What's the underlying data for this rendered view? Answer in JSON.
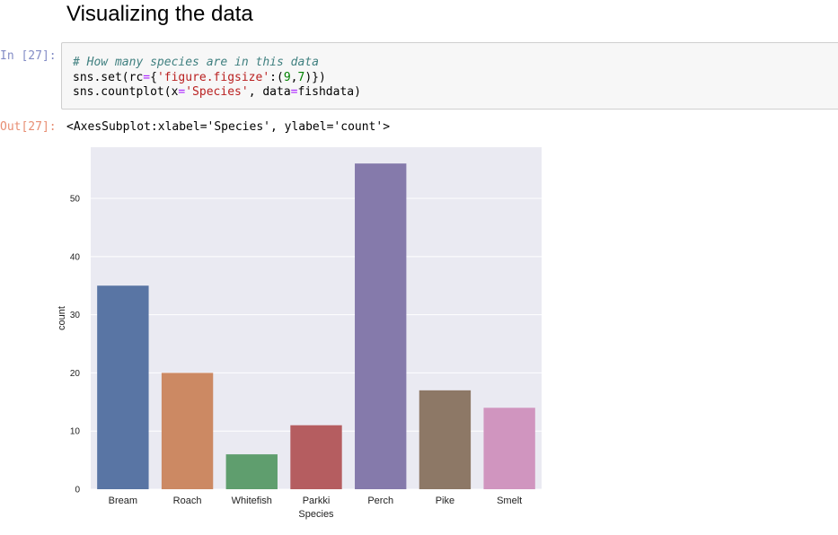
{
  "section": {
    "title": "Visualizing the data"
  },
  "cell": {
    "in_prompt": "In [27]:",
    "code_comment": "# How many species are in this data",
    "code_line2": {
      "a": "sns.set(rc",
      "eq": "=",
      "b": "{",
      "str": "'figure.figsize'",
      "c": ":(",
      "n1": "9",
      "comma": ",",
      "n2": "7",
      "d": ")})"
    },
    "code_line3": {
      "a": "sns.countplot(x",
      "eq1": "=",
      "str": "'Species'",
      "b": ", data",
      "eq2": "=",
      "c": "fishdata)"
    },
    "out_prompt": "Out[27]:",
    "out_text": "<AxesSubplot:xlabel='Species', ylabel='count'>"
  },
  "chart_data": {
    "type": "bar",
    "categories": [
      "Bream",
      "Roach",
      "Whitefish",
      "Parkki",
      "Perch",
      "Pike",
      "Smelt"
    ],
    "values": [
      35,
      20,
      6,
      11,
      56,
      17,
      14
    ],
    "colors": [
      "#5975a4",
      "#cc8963",
      "#5f9e6e",
      "#b55d60",
      "#857aab",
      "#8d7866",
      "#d095bf"
    ],
    "title": "",
    "xlabel": "Species",
    "ylabel": "count",
    "ylim": [
      0,
      58.8
    ],
    "yticks": [
      0,
      10,
      20,
      30,
      40,
      50
    ],
    "grid": true,
    "background": "#eaeaf2"
  }
}
